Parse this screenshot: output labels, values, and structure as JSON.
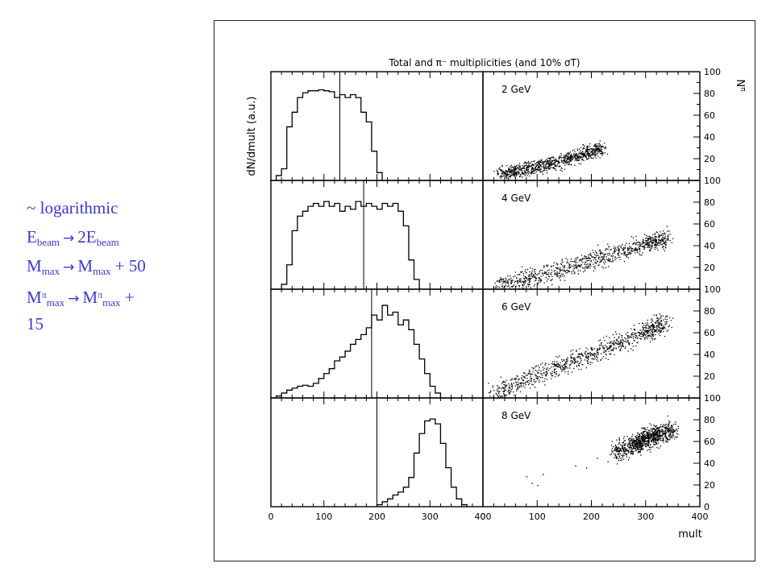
{
  "notes": {
    "line1": "~ logarithmic",
    "line2": {
      "a": "E",
      "a_sub": "beam",
      "arrow": "→",
      "b": "2E",
      "b_sub": "beam"
    },
    "line3": {
      "a": "M",
      "a_sub": "max",
      "arrow": "→",
      "b": "M",
      "b_sub": "max",
      "tail": " + 50"
    },
    "line4": {
      "a": "M",
      "a_sup": "π",
      "a_sub": "max",
      "arrow": "→",
      "b": "M",
      "b_sup": "π",
      "b_sub": "max",
      "tail": " +"
    },
    "line5": "15"
  },
  "chart_data": {
    "type": "histogram+scatter",
    "title": "Total and π⁻ multiplicities (and 10% σT)",
    "xlabel": "mult",
    "ylabel_left": "dN/dmult (a.u.)",
    "ylabel_right": "N",
    "ylabel_right_sup": "π",
    "xlim": [
      0,
      400
    ],
    "x_ticks": [
      0,
      100,
      200,
      300,
      400
    ],
    "ylim_right": [
      0,
      100
    ],
    "y_ticks_right": [
      0,
      20,
      40,
      60,
      80,
      100
    ],
    "panels": [
      {
        "energy_label": "2 GeV",
        "vline": 130,
        "hist": [
          [
            10,
            0.05
          ],
          [
            20,
            0.12
          ],
          [
            30,
            0.55
          ],
          [
            40,
            0.7
          ],
          [
            50,
            0.85
          ],
          [
            60,
            0.9
          ],
          [
            70,
            0.92
          ],
          [
            80,
            0.92
          ],
          [
            90,
            0.93
          ],
          [
            100,
            0.92
          ],
          [
            110,
            0.91
          ],
          [
            120,
            0.85
          ],
          [
            130,
            0.88
          ],
          [
            140,
            0.85
          ],
          [
            150,
            0.88
          ],
          [
            160,
            0.85
          ],
          [
            170,
            0.7
          ],
          [
            180,
            0.6
          ],
          [
            190,
            0.3
          ],
          [
            200,
            0.08
          ],
          [
            210,
            0.0
          ]
        ],
        "scatter_center": [
          [
            30,
            6
          ],
          [
            80,
            11
          ],
          [
            130,
            16
          ],
          [
            180,
            24
          ],
          [
            220,
            30
          ]
        ],
        "scatter_spread": 5
      },
      {
        "energy_label": "4 GeV",
        "vline": 175,
        "hist": [
          [
            20,
            0.05
          ],
          [
            30,
            0.25
          ],
          [
            40,
            0.6
          ],
          [
            50,
            0.75
          ],
          [
            60,
            0.8
          ],
          [
            70,
            0.85
          ],
          [
            80,
            0.88
          ],
          [
            90,
            0.85
          ],
          [
            100,
            0.9
          ],
          [
            110,
            0.85
          ],
          [
            120,
            0.88
          ],
          [
            130,
            0.8
          ],
          [
            140,
            0.85
          ],
          [
            150,
            0.82
          ],
          [
            160,
            0.9
          ],
          [
            170,
            0.85
          ],
          [
            180,
            0.88
          ],
          [
            190,
            0.85
          ],
          [
            200,
            0.82
          ],
          [
            210,
            0.88
          ],
          [
            220,
            0.85
          ],
          [
            230,
            0.88
          ],
          [
            240,
            0.8
          ],
          [
            250,
            0.65
          ],
          [
            260,
            0.3
          ],
          [
            270,
            0.1
          ],
          [
            280,
            0.0
          ]
        ],
        "scatter_center": [
          [
            30,
            5
          ],
          [
            100,
            13
          ],
          [
            170,
            22
          ],
          [
            240,
            33
          ],
          [
            300,
            42
          ],
          [
            340,
            48
          ]
        ],
        "scatter_spread": 7
      },
      {
        "energy_label": "6 GeV",
        "vline": 190,
        "hist": [
          [
            10,
            0.02
          ],
          [
            20,
            0.05
          ],
          [
            30,
            0.08
          ],
          [
            40,
            0.1
          ],
          [
            50,
            0.12
          ],
          [
            60,
            0.13
          ],
          [
            70,
            0.12
          ],
          [
            80,
            0.15
          ],
          [
            90,
            0.2
          ],
          [
            100,
            0.25
          ],
          [
            110,
            0.3
          ],
          [
            120,
            0.38
          ],
          [
            130,
            0.42
          ],
          [
            140,
            0.48
          ],
          [
            150,
            0.55
          ],
          [
            160,
            0.6
          ],
          [
            170,
            0.65
          ],
          [
            180,
            0.72
          ],
          [
            190,
            0.85
          ],
          [
            200,
            0.8
          ],
          [
            210,
            0.95
          ],
          [
            220,
            0.85
          ],
          [
            230,
            0.88
          ],
          [
            240,
            0.75
          ],
          [
            250,
            0.8
          ],
          [
            260,
            0.7
          ],
          [
            270,
            0.55
          ],
          [
            280,
            0.4
          ],
          [
            290,
            0.25
          ],
          [
            300,
            0.12
          ],
          [
            310,
            0.05
          ],
          [
            320,
            0.0
          ]
        ],
        "scatter_center": [
          [
            20,
            5
          ],
          [
            90,
            20
          ],
          [
            160,
            33
          ],
          [
            230,
            47
          ],
          [
            300,
            62
          ],
          [
            340,
            70
          ]
        ],
        "scatter_spread": 7
      },
      {
        "energy_label": "8 GeV",
        "vline": 200,
        "hist": [
          [
            200,
            0.02
          ],
          [
            210,
            0.05
          ],
          [
            220,
            0.08
          ],
          [
            230,
            0.12
          ],
          [
            240,
            0.15
          ],
          [
            250,
            0.2
          ],
          [
            260,
            0.3
          ],
          [
            270,
            0.55
          ],
          [
            280,
            0.75
          ],
          [
            290,
            0.88
          ],
          [
            300,
            0.9
          ],
          [
            310,
            0.85
          ],
          [
            320,
            0.65
          ],
          [
            330,
            0.4
          ],
          [
            340,
            0.2
          ],
          [
            350,
            0.08
          ],
          [
            360,
            0.02
          ],
          [
            370,
            0.0
          ]
        ],
        "scatter_center": [
          [
            240,
            50
          ],
          [
            280,
            58
          ],
          [
            300,
            63
          ],
          [
            320,
            67
          ],
          [
            350,
            72
          ]
        ],
        "scatter_spread": 7,
        "outliers": [
          [
            80,
            28
          ],
          [
            90,
            22
          ],
          [
            100,
            20
          ],
          [
            110,
            30
          ],
          [
            170,
            38
          ],
          [
            190,
            36
          ],
          [
            210,
            45
          ]
        ]
      }
    ]
  }
}
